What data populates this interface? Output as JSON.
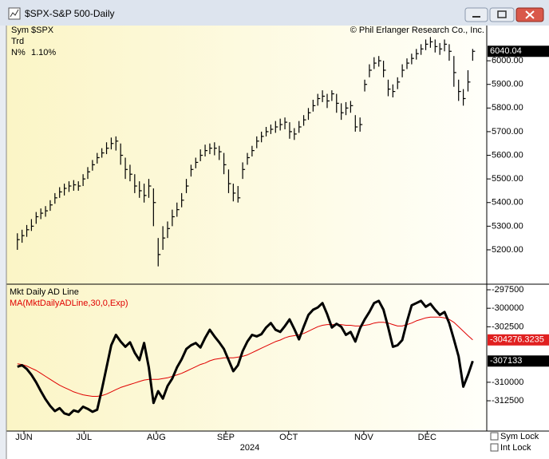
{
  "window": {
    "title": "$SPX-S&P 500-Daily"
  },
  "info": {
    "sym_label": "Sym",
    "sym": "$SPX",
    "trd_label": "Trd",
    "n_label": "N%",
    "n": "1.10%"
  },
  "copyright": "© Phil Erlanger Research Co., Inc.",
  "controls": {
    "sym_lock": "Sym Lock",
    "int_lock": "Int Lock"
  },
  "chart_data": [
    {
      "type": "ohlc",
      "color": "#000000",
      "ylim": [
        5058,
        6149
      ],
      "xlim": [
        -2,
        100
      ],
      "yticks": [
        {
          "value": 5200,
          "label": "5200.00"
        },
        {
          "value": 5300,
          "label": "5300.00"
        },
        {
          "value": 5400,
          "label": "5400.00"
        },
        {
          "value": 5500,
          "label": "5500.00"
        },
        {
          "value": 5600,
          "label": "5600.00"
        },
        {
          "value": 5700,
          "label": "5700.00"
        },
        {
          "value": 5800,
          "label": "5800.00"
        },
        {
          "value": 5900,
          "label": "5900.00"
        },
        {
          "value": 6000,
          "label": "6000.00"
        }
      ],
      "values": [
        5243,
        5260,
        5285,
        5300,
        5340,
        5355,
        5365,
        5390,
        5420,
        5445,
        5460,
        5470,
        5475,
        5470,
        5500,
        5530,
        5560,
        5590,
        5610,
        5630,
        5650,
        5660,
        5600,
        5540,
        5520,
        5470,
        5450,
        5430,
        5470,
        5400,
        5180,
        5250,
        5290,
        5340,
        5370,
        5410,
        5470,
        5540,
        5570,
        5600,
        5620,
        5630,
        5630,
        5615,
        5560,
        5480,
        5440,
        5420,
        5540,
        5590,
        5620,
        5660,
        5680,
        5700,
        5710,
        5720,
        5730,
        5740,
        5700,
        5690,
        5720,
        5750,
        5780,
        5810,
        5840,
        5850,
        5830,
        5860,
        5820,
        5780,
        5800,
        5810,
        5720,
        5730,
        5900,
        5960,
        5990,
        6000,
        5960,
        5880,
        5870,
        5910,
        5960,
        5990,
        6010,
        6030,
        6050,
        6070,
        6080,
        6060,
        6050,
        6070,
        6040,
        5950,
        5870,
        5840,
        5910,
        6040.04
      ],
      "high": [
        5270,
        5285,
        5305,
        5330,
        5360,
        5375,
        5385,
        5410,
        5440,
        5465,
        5480,
        5490,
        5495,
        5490,
        5520,
        5550,
        5580,
        5610,
        5630,
        5655,
        5675,
        5680,
        5650,
        5590,
        5560,
        5520,
        5490,
        5480,
        5500,
        5460,
        5250,
        5300,
        5320,
        5370,
        5400,
        5440,
        5500,
        5560,
        5590,
        5625,
        5645,
        5650,
        5655,
        5640,
        5610,
        5540,
        5480,
        5470,
        5570,
        5610,
        5640,
        5680,
        5700,
        5720,
        5730,
        5745,
        5755,
        5760,
        5740,
        5715,
        5745,
        5770,
        5800,
        5835,
        5860,
        5875,
        5860,
        5875,
        5860,
        5820,
        5825,
        5830,
        5770,
        5760,
        5920,
        5985,
        6015,
        6020,
        6000,
        5920,
        5900,
        5930,
        5985,
        6010,
        6030,
        6050,
        6070,
        6090,
        6100,
        6090,
        6075,
        6090,
        6070,
        6020,
        5920,
        5880,
        5960,
        6050
      ],
      "low": [
        5200,
        5230,
        5255,
        5280,
        5310,
        5330,
        5340,
        5365,
        5395,
        5420,
        5430,
        5445,
        5450,
        5450,
        5470,
        5500,
        5535,
        5565,
        5590,
        5605,
        5625,
        5620,
        5560,
        5500,
        5490,
        5440,
        5420,
        5400,
        5420,
        5300,
        5130,
        5200,
        5250,
        5300,
        5340,
        5380,
        5440,
        5510,
        5545,
        5575,
        5595,
        5605,
        5600,
        5580,
        5520,
        5440,
        5405,
        5400,
        5500,
        5560,
        5595,
        5630,
        5655,
        5680,
        5690,
        5695,
        5705,
        5710,
        5670,
        5665,
        5695,
        5725,
        5750,
        5785,
        5810,
        5825,
        5800,
        5830,
        5780,
        5750,
        5770,
        5780,
        5700,
        5700,
        5870,
        5930,
        5965,
        5975,
        5930,
        5850,
        5845,
        5880,
        5930,
        5965,
        5985,
        6005,
        6025,
        6045,
        6055,
        6035,
        6025,
        6040,
        6000,
        5890,
        5830,
        5810,
        5870,
        6000
      ]
    },
    {
      "type": "line",
      "ylim": [
        -316595,
        -296853
      ],
      "xlim": [
        -2,
        100
      ],
      "xlabel": "2024",
      "yticks": [
        -297500,
        -300000,
        -302500,
        -310000,
        -312500
      ],
      "xticks": [
        {
          "value": 1.4,
          "label": "JUN"
        },
        {
          "value": 14.2,
          "label": "JUL"
        },
        {
          "value": 29.6,
          "label": "AUG"
        },
        {
          "value": 44.4,
          "label": "SEP"
        },
        {
          "value": 57.8,
          "label": "OCT"
        },
        {
          "value": 73.8,
          "label": "NOV"
        },
        {
          "value": 87.3,
          "label": "DEC"
        }
      ],
      "series": [
        {
          "name": "Mkt Daily AD Line",
          "color": "#000000",
          "values": [
            -307900,
            -307700,
            -308200,
            -309000,
            -310000,
            -311200,
            -312300,
            -313200,
            -313900,
            -313500,
            -314200,
            -314400,
            -313800,
            -314000,
            -313300,
            -313600,
            -314000,
            -313700,
            -311000,
            -308000,
            -305000,
            -303600,
            -304500,
            -305200,
            -304600,
            -306000,
            -307000,
            -304700,
            -308000,
            -312800,
            -311200,
            -312200,
            -310500,
            -309500,
            -308000,
            -306900,
            -305500,
            -305000,
            -304700,
            -305300,
            -304000,
            -302900,
            -303800,
            -304600,
            -305500,
            -307000,
            -308500,
            -307700,
            -305800,
            -304500,
            -303600,
            -303800,
            -303500,
            -302600,
            -302000,
            -302900,
            -303200,
            -302400,
            -301500,
            -302800,
            -304200,
            -302500,
            -300900,
            -300200,
            -299900,
            -299300,
            -300800,
            -302600,
            -302100,
            -302500,
            -303600,
            -303200,
            -304500,
            -302700,
            -301500,
            -300500,
            -299300,
            -299000,
            -300200,
            -302600,
            -305200,
            -305000,
            -304300,
            -301800,
            -299600,
            -299300,
            -299000,
            -299800,
            -299400,
            -300200,
            -300900,
            -300500,
            -302000,
            -304200,
            -306500,
            -310600,
            -309000,
            -307133
          ]
        },
        {
          "name": "MA(MktDailyADLine,30,0,Exp)",
          "color": "#e00000",
          "values": [
            -307500,
            -307600,
            -307800,
            -308100,
            -308400,
            -308800,
            -309200,
            -309600,
            -310000,
            -310400,
            -310700,
            -311000,
            -311300,
            -311500,
            -311700,
            -311800,
            -311900,
            -311900,
            -311800,
            -311600,
            -311300,
            -311000,
            -310700,
            -310500,
            -310300,
            -310100,
            -309900,
            -309700,
            -309600,
            -309600,
            -309600,
            -309500,
            -309400,
            -309200,
            -309000,
            -308800,
            -308500,
            -308200,
            -307900,
            -307600,
            -307400,
            -307100,
            -306900,
            -306800,
            -306700,
            -306700,
            -306700,
            -306600,
            -306500,
            -306300,
            -306000,
            -305700,
            -305400,
            -305100,
            -304800,
            -304500,
            -304300,
            -304000,
            -303800,
            -303700,
            -303600,
            -303400,
            -303100,
            -302800,
            -302500,
            -302300,
            -302200,
            -302200,
            -302200,
            -302200,
            -302300,
            -302300,
            -302400,
            -302400,
            -302300,
            -302200,
            -302000,
            -301900,
            -301900,
            -302000,
            -302200,
            -302400,
            -302400,
            -302200,
            -302000,
            -301700,
            -301500,
            -301300,
            -301200,
            -301200,
            -301200,
            -301300,
            -301500,
            -301900,
            -302500,
            -303100,
            -303700,
            -304276.3235
          ]
        }
      ]
    }
  ]
}
